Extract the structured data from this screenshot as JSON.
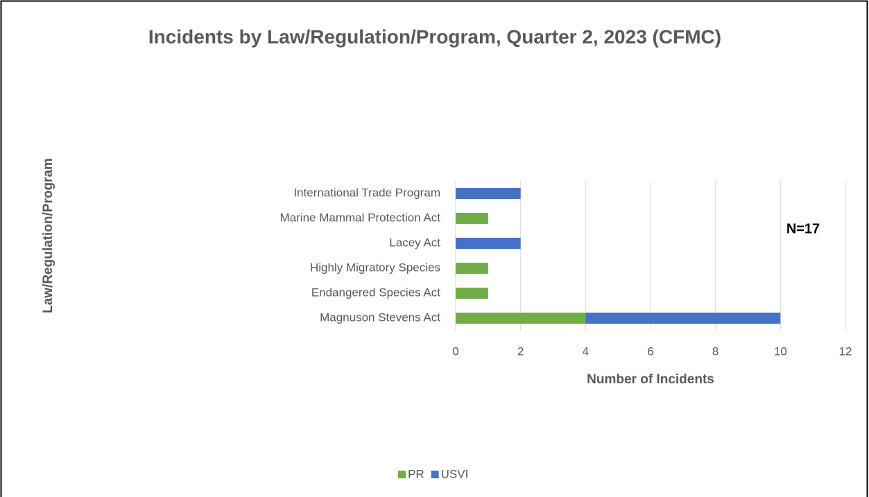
{
  "chart_data": {
    "type": "stacked-barh",
    "title": "Incidents by Law/Regulation/Program, Quarter 2, 2023 (CFMC)",
    "xlabel": "Number of Incidents",
    "ylabel": "Law/Regulation/Program",
    "annotation": "N=17",
    "categories": [
      "International Trade Program",
      "Marine Mammal Protection Act",
      "Lacey Act",
      "Highly Migratory Species",
      "Endangered Species Act",
      "Magnuson Stevens Act"
    ],
    "series": [
      {
        "name": "PR",
        "color": "#70ad47",
        "values": [
          0,
          1,
          0,
          1,
          1,
          4
        ]
      },
      {
        "name": "USVI",
        "color": "#4472c4",
        "values": [
          2,
          0,
          2,
          0,
          0,
          6
        ]
      }
    ],
    "xlim": [
      0,
      12
    ],
    "xticks": [
      0,
      2,
      4,
      6,
      8,
      10,
      12
    ],
    "grid": true,
    "legend": "bottom"
  }
}
